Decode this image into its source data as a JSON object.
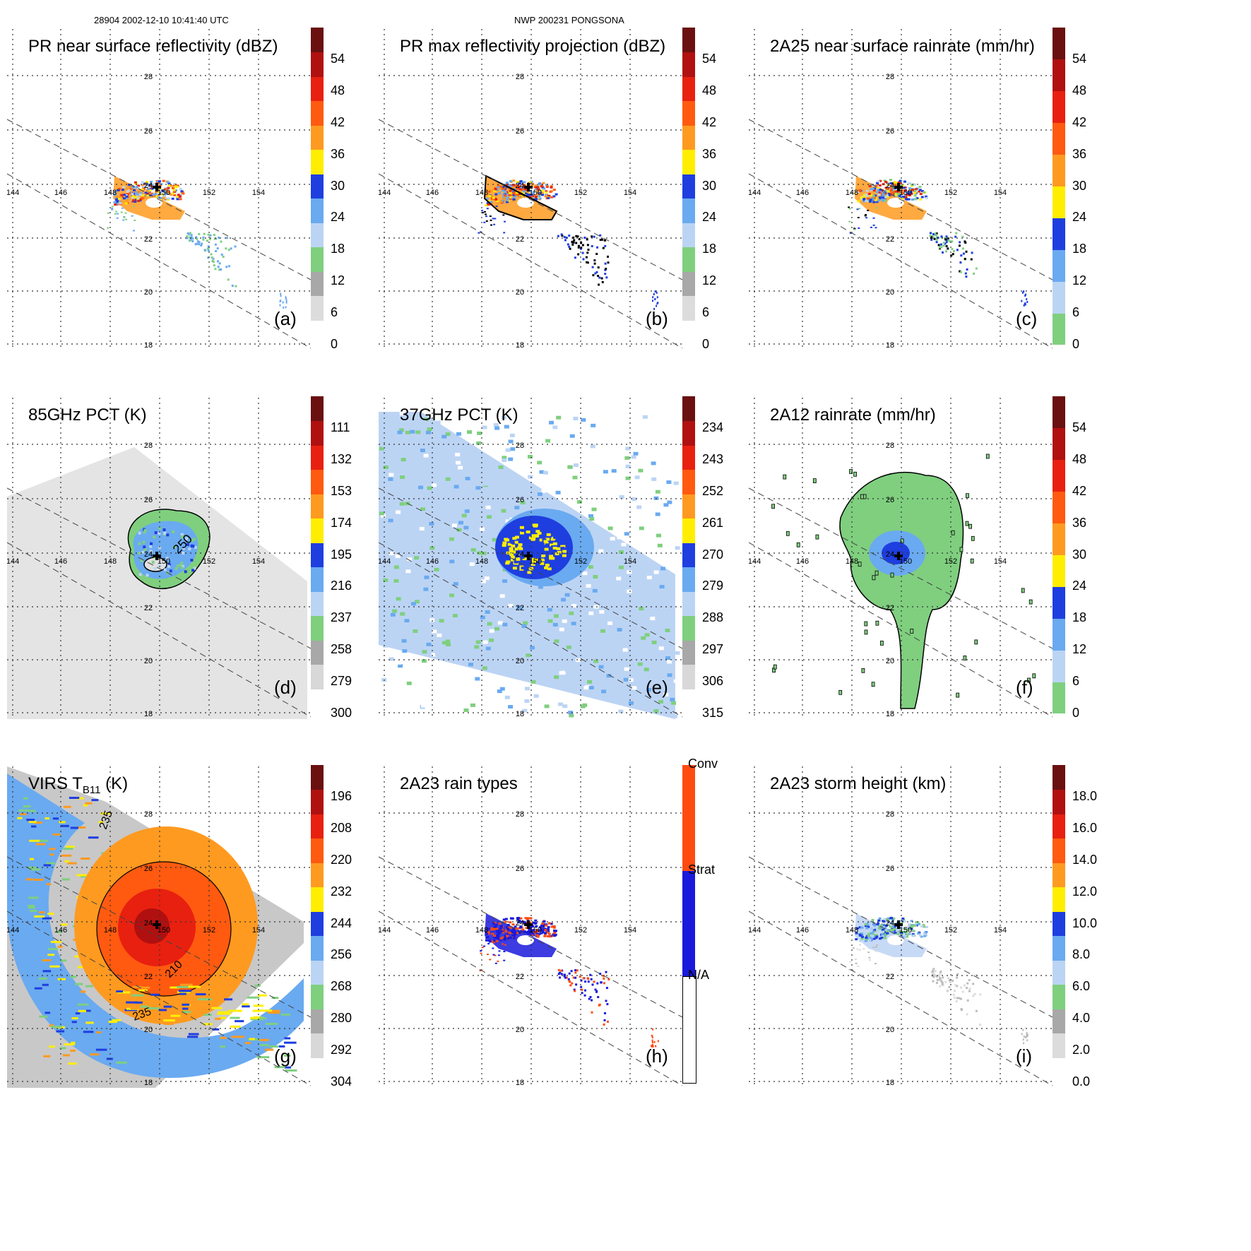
{
  "header": {
    "left": "28904 2002-12-10 10:41:40 UTC",
    "center": "NWP 200231 PONGSONA"
  },
  "map_labels": {
    "lon": [
      "144",
      "146",
      "148",
      "150",
      "152",
      "154"
    ],
    "lat": [
      "28",
      "26",
      "24",
      "22",
      "20",
      "18"
    ]
  },
  "panels": [
    {
      "id": "a",
      "title": "PR near surface reflectivity (dBZ)",
      "letter": "(a)",
      "colorbar": [
        "0",
        "6",
        "12",
        "18",
        "24",
        "30",
        "36",
        "42",
        "48",
        "54"
      ],
      "colorbar_type": "reflectivity",
      "field": "pr-swath"
    },
    {
      "id": "b",
      "title": "PR max reflectivity projection (dBZ)",
      "letter": "(b)",
      "colorbar": [
        "0",
        "6",
        "12",
        "18",
        "24",
        "30",
        "36",
        "42",
        "48",
        "54"
      ],
      "colorbar_type": "reflectivity",
      "field": "pr-swath-outlined"
    },
    {
      "id": "c",
      "title": "2A25 near surface rainrate (mm/hr)",
      "letter": "(c)",
      "colorbar": [
        "0",
        "6",
        "12",
        "18",
        "24",
        "30",
        "36",
        "42",
        "48",
        "54"
      ],
      "colorbar_type": "rainrate",
      "field": "pr-swath-rain"
    },
    {
      "id": "d",
      "title": "85GHz PCT (K)",
      "letter": "(d)",
      "colorbar": [
        "300",
        "279",
        "258",
        "237",
        "216",
        "195",
        "174",
        "153",
        "132",
        "111"
      ],
      "colorbar_type": "pct",
      "field": "tmi-85",
      "contour_label": "250"
    },
    {
      "id": "e",
      "title": "37GHz PCT (K)",
      "letter": "(e)",
      "colorbar": [
        "315",
        "306",
        "297",
        "288",
        "279",
        "270",
        "261",
        "252",
        "243",
        "234"
      ],
      "colorbar_type": "pct",
      "field": "tmi-37"
    },
    {
      "id": "f",
      "title": "2A12 rainrate (mm/hr)",
      "letter": "(f)",
      "colorbar": [
        "0",
        "6",
        "12",
        "18",
        "24",
        "30",
        "36",
        "42",
        "48",
        "54"
      ],
      "colorbar_type": "rainrate",
      "field": "tmi-rain"
    },
    {
      "id": "g",
      "title": "VIRS T",
      "title_sub": "B11",
      "title_tail": " (K)",
      "letter": "(g)",
      "colorbar": [
        "304",
        "292",
        "280",
        "268",
        "256",
        "244",
        "232",
        "220",
        "208",
        "196"
      ],
      "colorbar_type": "pct",
      "field": "virs",
      "contour_labels": [
        "235",
        "210",
        "235"
      ]
    },
    {
      "id": "h",
      "title": "2A23 rain types",
      "letter": "(h)",
      "colorbar": [
        "N/A",
        "Strat",
        "Conv"
      ],
      "colorbar_type": "raintype",
      "field": "pr-swath-type"
    },
    {
      "id": "i",
      "title": "2A23 storm height (km)",
      "letter": "(i)",
      "colorbar": [
        "0.0",
        "2.0",
        "4.0",
        "6.0",
        "8.0",
        "10.0",
        "12.0",
        "14.0",
        "16.0",
        "18.0"
      ],
      "colorbar_type": "height",
      "field": "pr-swath-height"
    }
  ],
  "colors": {
    "reflectivity": [
      "#ffffff",
      "#dcdcdc",
      "#a8a8a8",
      "#7fcf7f",
      "#bcd4f4",
      "#6aaaf0",
      "#1e3ee0",
      "#ffee00",
      "#ff9a20",
      "#ff5a10",
      "#e82010",
      "#b01010",
      "#6a1010"
    ],
    "rainrate": [
      "#7fcf7f",
      "#bcd4f4",
      "#6aaaf0",
      "#1e3ee0",
      "#ffee00",
      "#ff9a20",
      "#ff5a10",
      "#e82010",
      "#b01010",
      "#6a1010"
    ],
    "pct": [
      "#ffffff",
      "#d8d8d8",
      "#a8a8a8",
      "#7fcf7f",
      "#bcd4f4",
      "#6aaaf0",
      "#1e3ee0",
      "#ffee00",
      "#ff9a20",
      "#ff5a10",
      "#e82010",
      "#b01010",
      "#6a1010"
    ],
    "height": [
      "#ffffff",
      "#dcdcdc",
      "#a8a8a8",
      "#7fcf7f",
      "#bcd4f4",
      "#6aaaf0",
      "#1e3ee0",
      "#ffee00",
      "#ff9a20",
      "#ff5a10",
      "#e82010",
      "#b01010",
      "#6a1010"
    ],
    "raintype": [
      "#ffffff",
      "#1a1adc",
      "#ff4a10"
    ]
  }
}
